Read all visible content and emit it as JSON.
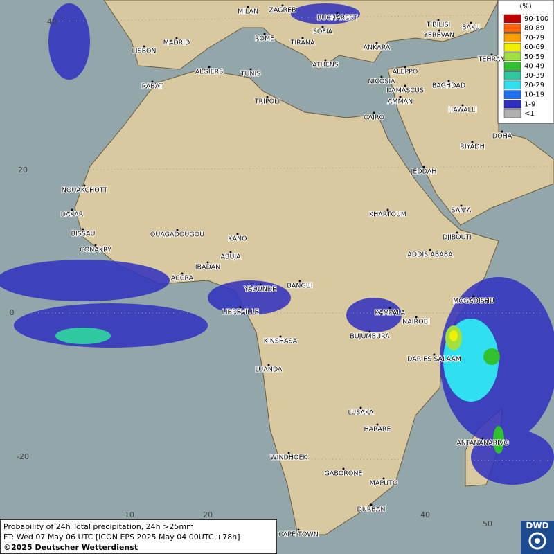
{
  "legend": {
    "title": "(%)",
    "entries": [
      {
        "label": "90-100",
        "color": "#c00000"
      },
      {
        "label": "80-89",
        "color": "#ff6000"
      },
      {
        "label": "70-79",
        "color": "#ffa000"
      },
      {
        "label": "60-69",
        "color": "#f0f000"
      },
      {
        "label": "50-59",
        "color": "#a0e040"
      },
      {
        "label": "40-49",
        "color": "#30c030"
      },
      {
        "label": "30-39",
        "color": "#30c8a0"
      },
      {
        "label": "20-29",
        "color": "#30e0f0"
      },
      {
        "label": "10-19",
        "color": "#2070f0"
      },
      {
        "label": "1-9",
        "color": "#3030c0"
      },
      {
        "label": "<1",
        "color": "#b0b0b0"
      }
    ]
  },
  "cities": [
    "MILAN",
    "ZAGREB",
    "BUCHAREST",
    "SOFIA",
    "ROME",
    "TIRANA",
    "ANKARA",
    "T'BILISI",
    "YEREVAN",
    "BAKU",
    "TEHRAN",
    "LISBON",
    "MADRID",
    "ALGIERS",
    "TUNIS",
    "ATHENS",
    "RABAT",
    "ALEPPO",
    "NICOSIA",
    "BAGHDAD",
    "DAMASCUS",
    "TRIPOLI",
    "AMMAN",
    "HAWALLI",
    "DOHA",
    "CAIRO",
    "RIYADH",
    "JEDDAH",
    "NOUAKCHOTT",
    "DAKAR",
    "KHARTOUM",
    "SAN'A",
    "BISSAU",
    "OUAGADOUGOU",
    "KANO",
    "DJIBOUTI",
    "CONAKRY",
    "ABUJA",
    "ADDIS ABABA",
    "IBADAN",
    "ACCRA",
    "YAOUNDE",
    "BANGUI",
    "MOGADISHU",
    "LIBREVILLE",
    "KAMPALA",
    "NAIROBI",
    "BUJUMBURA",
    "KINSHASA",
    "DAR ES SALAAM",
    "LUANDA",
    "LUSAKA",
    "HARARE",
    "ANTANANARIVO",
    "WINDHOEK",
    "GABORONE",
    "MAPUTO",
    "DURBAN",
    "CAPE TOWN"
  ],
  "graticule_labels": [
    "40",
    "20",
    "0",
    "-20",
    "10",
    "20",
    "40",
    "50"
  ],
  "info": {
    "line1": "Probability of 24h Total precipitation, 24h >25mm",
    "line2": "FT: Wed 07 May 06 UTC [ICON EPS 2025 May 04 00UTC +78h]",
    "line3": "©2025 Deutscher Wetterdienst"
  },
  "logo": "DWD"
}
